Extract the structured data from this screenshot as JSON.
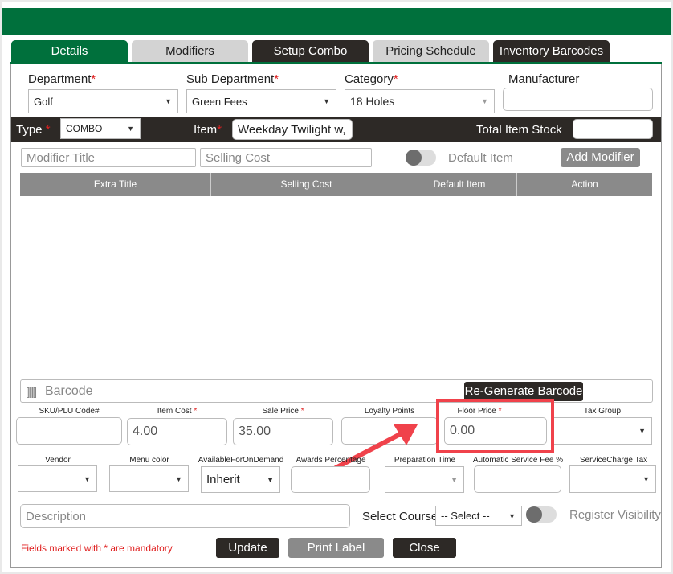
{
  "tabs": [
    "Details",
    "Modifiers",
    "Setup Combo",
    "Pricing Schedule",
    "Inventory Barcodes"
  ],
  "fields": {
    "department": {
      "label": "Department",
      "value": "Golf"
    },
    "sub_department": {
      "label": "Sub Department",
      "value": "Green Fees"
    },
    "category": {
      "label": "Category",
      "value": "18 Holes"
    },
    "manufacturer": {
      "label": "Manufacturer",
      "value": ""
    },
    "type": {
      "label": "Type",
      "value": "COMBO"
    },
    "item": {
      "label": "Item",
      "value": "Weekday Twilight w,"
    },
    "total_stock": {
      "label": "Total Item Stock",
      "value": ""
    },
    "required_mark": "*"
  },
  "modifier": {
    "title_placeholder": "Modifier Title",
    "cost_placeholder": "Selling Cost",
    "default_label": "Default Item",
    "add_label": "Add Modifier",
    "default_on": false
  },
  "table": {
    "columns": [
      "Extra Title",
      "Selling Cost",
      "Default Item",
      "Action"
    ],
    "rows": []
  },
  "barcode": {
    "placeholder": "Barcode",
    "regen_label": "Re-Generate Barcode"
  },
  "pricing": {
    "sku": {
      "label": "SKU/PLU Code#",
      "value": ""
    },
    "item_cost": {
      "label": "Item Cost",
      "value": "4.00"
    },
    "sale_price": {
      "label": "Sale Price",
      "value": "35.00"
    },
    "loyalty": {
      "label": "Loyalty Points",
      "value": ""
    },
    "floor_price": {
      "label": "Floor Price",
      "value": "0.00"
    },
    "tax_group": {
      "label": "Tax Group",
      "value": ""
    }
  },
  "extra": {
    "vendor": "Vendor",
    "menu_color": "Menu color",
    "available": "AvailableForOnDemand",
    "available_value": "Inherit",
    "awards": "Awards Percentage",
    "prep": "Preparation Time",
    "auto_fee": "Automatic Service Fee %",
    "sc_tax": "ServiceCharge Tax Group"
  },
  "description_placeholder": "Description",
  "course": {
    "label": "Select Course",
    "value": "-- Select --"
  },
  "register_visibility": {
    "label": "Register Visibility",
    "on": false
  },
  "mandatory_note": "Fields marked with * are mandatory",
  "buttons": {
    "update": "Update",
    "print": "Print Label",
    "close": "Close"
  },
  "colors": {
    "brand": "#00703c",
    "dark": "#2d2926",
    "highlight": "#f0424b"
  }
}
